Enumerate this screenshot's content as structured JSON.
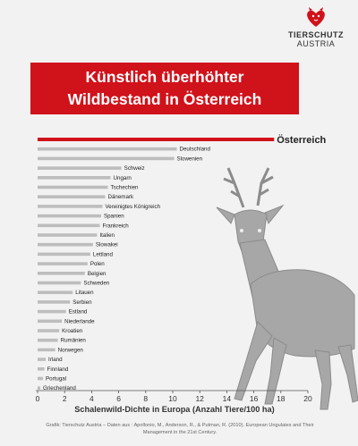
{
  "logo": {
    "line1": "TIERSCHUTZ",
    "line2": "AUSTRIA",
    "icon": "heart-cat-icon"
  },
  "title": {
    "line1": "Künstlich überhöhter",
    "line2": "Wildbestand in Österreich"
  },
  "colors": {
    "accent": "#d0121b",
    "bar": "#bdbdbd",
    "text": "#333333"
  },
  "illustration": "deer-icon",
  "chart_data": {
    "type": "bar",
    "orientation": "horizontal",
    "categories": [
      "Österreich",
      "Deutschland",
      "Slowenien",
      "Schweiz",
      "Ungarn",
      "Tschechien",
      "Dänemark",
      "Vereinigtes Königreich",
      "Spanien",
      "Frankreich",
      "Italien",
      "Slowakei",
      "Lettland",
      "Polen",
      "Belgien",
      "Schweden",
      "Litauen",
      "Serbien",
      "Estland",
      "Niederlande",
      "Kroatien",
      "Rumänien",
      "Norwegen",
      "Irland",
      "Finnland",
      "Portugal",
      "Griechenland"
    ],
    "values": [
      17.5,
      10.3,
      10.1,
      6.2,
      5.4,
      5.2,
      5.0,
      4.8,
      4.7,
      4.6,
      4.4,
      4.1,
      3.9,
      3.7,
      3.5,
      3.2,
      2.6,
      2.4,
      2.1,
      1.8,
      1.6,
      1.5,
      1.3,
      0.6,
      0.5,
      0.4,
      0.2
    ],
    "highlight": "Österreich",
    "xlabel": "Schalenwild-Dichte in Europa (Anzahl Tiere/100 ha)",
    "xlim": [
      0,
      20
    ],
    "xticks": [
      0,
      2,
      4,
      6,
      8,
      10,
      12,
      14,
      16,
      18,
      20
    ],
    "grid": false
  },
  "footer": {
    "line1": "Grafik: Tierschutz Austria – Daten aus : Apollonio, M., Anderson, R., & Putman, R. (2010). European Ungulates and Their",
    "line2": "Management in the 21st Century."
  }
}
